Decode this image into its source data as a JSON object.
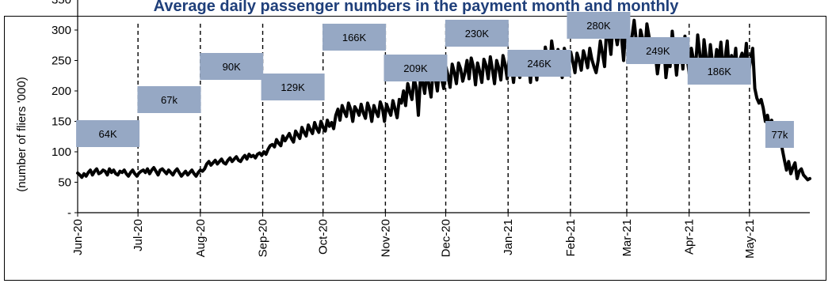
{
  "chart_data": {
    "type": "line",
    "title": "Average daily passenger numbers in the payment month and monthly",
    "ylabel": "(number of fliers '000)",
    "xlabel": "",
    "ylim": [
      0,
      350
    ],
    "yticks": [
      0,
      50,
      100,
      150,
      200,
      250,
      300,
      350
    ],
    "ytick_labels": [
      "-",
      "50",
      "100",
      "150",
      "200",
      "250",
      "300",
      "350"
    ],
    "x_ticks": [
      "Jun-20",
      "Jul-20",
      "Aug-20",
      "Sep-20",
      "Oct-20",
      "Nov-20",
      "Dec-20",
      "Jan-21",
      "Feb-21",
      "Mar-21",
      "Apr-21",
      "May-21"
    ],
    "month_lengths": [
      30,
      31,
      31,
      30,
      31,
      30,
      31,
      31,
      28,
      31,
      30,
      31
    ],
    "grid": false,
    "legend": "none",
    "colors": {
      "line": "#000000",
      "label_box": "#96a8c4",
      "title": "#1f3f7a"
    },
    "monthly_labels": [
      "64K",
      "67k",
      "90K",
      "129K",
      "166K",
      "209K",
      "230K",
      "246K",
      "280K",
      "249K",
      "186K",
      "77k"
    ],
    "series": [
      {
        "values": [
          65,
          62,
          58,
          64,
          60,
          66,
          70,
          62,
          68,
          72,
          64,
          66,
          70,
          68,
          62,
          72,
          66,
          70,
          64,
          62,
          68,
          66,
          70,
          64,
          60,
          66,
          70,
          64,
          60,
          65,
          68,
          70,
          66,
          72,
          64,
          70,
          74,
          68,
          62,
          70,
          72,
          68,
          64,
          70,
          66,
          62,
          68,
          72,
          66,
          60,
          64,
          68,
          62,
          66,
          70,
          64,
          60,
          66,
          70,
          68,
          72,
          80,
          84,
          78,
          82,
          86,
          80,
          84,
          88,
          82,
          80,
          86,
          90,
          84,
          88,
          92,
          86,
          84,
          90,
          94,
          88,
          96,
          92,
          94,
          90,
          96,
          98,
          94,
          100,
          96,
          104,
          110,
          112,
          108,
          120,
          114,
          110,
          126,
          118,
          124,
          130,
          122,
          116,
          134,
          128,
          122,
          140,
          132,
          126,
          144,
          136,
          130,
          148,
          138,
          132,
          150,
          140,
          134,
          152,
          142,
          148,
          138,
          160,
          170,
          152,
          176,
          166,
          158,
          180,
          170,
          150,
          174,
          168,
          160,
          178,
          164,
          155,
          180,
          170,
          150,
          176,
          166,
          158,
          182,
          172,
          150,
          178,
          168,
          160,
          184,
          170,
          156,
          186,
          180,
          200,
          176,
          212,
          198,
          186,
          220,
          206,
          160,
          222,
          214,
          196,
          232,
          210,
          190,
          234,
          222,
          200,
          238,
          220,
          204,
          240,
          226,
          206,
          244,
          230,
          212,
          246,
          236,
          216,
          230,
          250,
          220,
          254,
          240,
          210,
          246,
          232,
          214,
          252,
          242,
          220,
          256,
          236,
          212,
          250,
          238,
          218,
          258,
          244,
          220,
          256,
          240,
          214,
          250,
          238,
          222,
          260,
          246,
          228,
          248,
          214,
          262,
          240,
          218,
          260,
          250,
          226,
          272,
          252,
          230,
          282,
          258,
          236,
          268,
          246,
          222,
          270,
          256,
          236,
          264,
          248,
          230,
          262,
          250,
          234,
          266,
          254,
          238,
          270,
          252,
          240,
          230,
          250,
          282,
          262,
          240,
          304,
          288,
          260,
          310,
          296,
          276,
          300,
          290,
          250,
          306,
          296,
          270,
          290,
          316,
          282,
          258,
          300,
          286,
          262,
          310,
          290,
          268,
          284,
          260,
          228,
          254,
          266,
          278,
          222,
          252,
          240,
          298,
          264,
          226,
          262,
          276,
          236,
          290,
          256,
          228,
          270,
          252,
          238,
          292,
          262,
          224,
          284,
          256,
          234,
          276,
          246,
          240,
          268,
          250,
          280,
          236,
          254,
          282,
          226,
          258,
          240,
          270,
          216,
          252,
          262,
          240,
          278,
          228,
          250,
          270,
          204,
          188,
          180,
          186,
          172,
          150,
          160,
          140,
          152,
          130,
          120,
          112,
          124,
          104,
          86,
          70,
          84,
          64,
          74,
          82,
          56,
          68,
          72,
          62,
          58,
          54,
          56
        ]
      }
    ]
  }
}
